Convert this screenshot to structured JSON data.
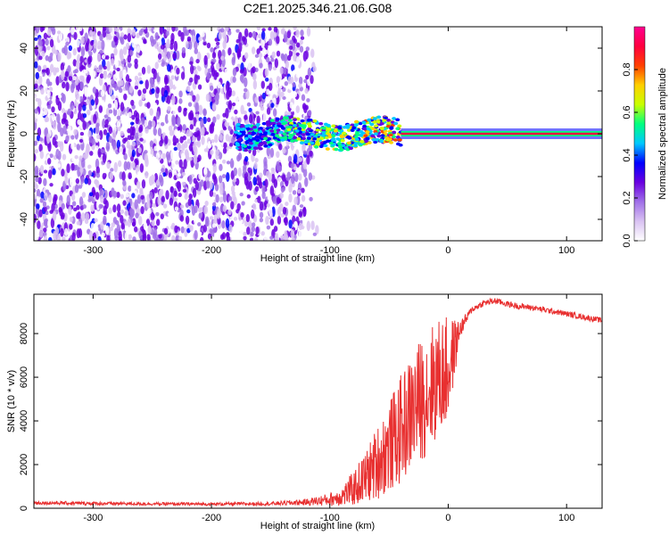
{
  "chart_data": [
    {
      "type": "heatmap",
      "title": "C2E1.2025.346.21.06.G08",
      "xlabel": "Height of straight line (km)",
      "ylabel": "Frequency (Hz)",
      "xlim": [
        -350,
        130
      ],
      "ylim": [
        -50,
        50
      ],
      "xticks": [
        -300,
        -200,
        -100,
        0,
        100
      ],
      "xtick_labels": [
        "-300",
        "-200",
        "-100",
        "0",
        "100"
      ],
      "yticks": [
        -40,
        -20,
        0,
        20,
        40
      ],
      "ytick_labels": [
        "-40",
        "-20",
        "0",
        "20",
        "40"
      ],
      "colorbar": {
        "label": "Normalized spectral amplitude",
        "range": [
          0,
          1
        ],
        "ticks": [
          0.0,
          0.2,
          0.4,
          0.6,
          0.8
        ],
        "tick_labels": [
          "0.0",
          "0.2",
          "0.4",
          "0.6",
          "0.8"
        ],
        "colors": [
          "#ffffff",
          "#d9c2f2",
          "#a070e8",
          "#6a00e0",
          "#0000ff",
          "#00c8ff",
          "#00ff80",
          "#c8ff00",
          "#ffd000",
          "#ff4000",
          "#ff0040",
          "#ff0090"
        ]
      },
      "regions": [
        {
          "name": "broadband noise",
          "x_range": [
            -350,
            -125
          ],
          "freq_range": [
            -50,
            50
          ],
          "amplitude": 0.15
        },
        {
          "name": "emerging carrier",
          "x_range": [
            -180,
            -40
          ],
          "freq_range": [
            -6,
            6
          ],
          "amplitude": 0.4
        },
        {
          "name": "clean carrier",
          "x_range": [
            -40,
            130
          ],
          "freq_center": 0,
          "amplitude": 0.95
        }
      ]
    },
    {
      "type": "line",
      "xlabel": "Height of straight line (km)",
      "ylabel": "SNR (10 * v/v)",
      "xlim": [
        -350,
        130
      ],
      "ylim": [
        0,
        9800
      ],
      "xticks": [
        -300,
        -200,
        -100,
        0,
        100
      ],
      "xtick_labels": [
        "-300",
        "-200",
        "-100",
        "0",
        "100"
      ],
      "yticks": [
        0,
        2000,
        4000,
        6000,
        8000
      ],
      "ytick_labels": [
        "0",
        "2000",
        "4000",
        "6000",
        "8000"
      ],
      "series": [
        {
          "name": "SNR",
          "color": "#e83030",
          "x": [
            -350,
            -300,
            -250,
            -200,
            -150,
            -120,
            -100,
            -90,
            -80,
            -70,
            -60,
            -50,
            -40,
            -30,
            -20,
            -10,
            0,
            10,
            20,
            30,
            40,
            50,
            60,
            70,
            80,
            90,
            100,
            110,
            120,
            130
          ],
          "y": [
            250,
            220,
            200,
            190,
            210,
            280,
            400,
            550,
            900,
            1400,
            2100,
            2800,
            3600,
            4500,
            5200,
            5900,
            6300,
            8200,
            9100,
            9400,
            9500,
            9350,
            9250,
            9200,
            9100,
            9000,
            8900,
            8800,
            8700,
            8600
          ],
          "noise": [
            80,
            80,
            70,
            70,
            80,
            150,
            300,
            450,
            800,
            1200,
            1700,
            2100,
            2500,
            2700,
            2900,
            2800,
            2500,
            400,
            150,
            150,
            150,
            140,
            140,
            130,
            130,
            130,
            130,
            130,
            130,
            130
          ]
        }
      ]
    }
  ]
}
